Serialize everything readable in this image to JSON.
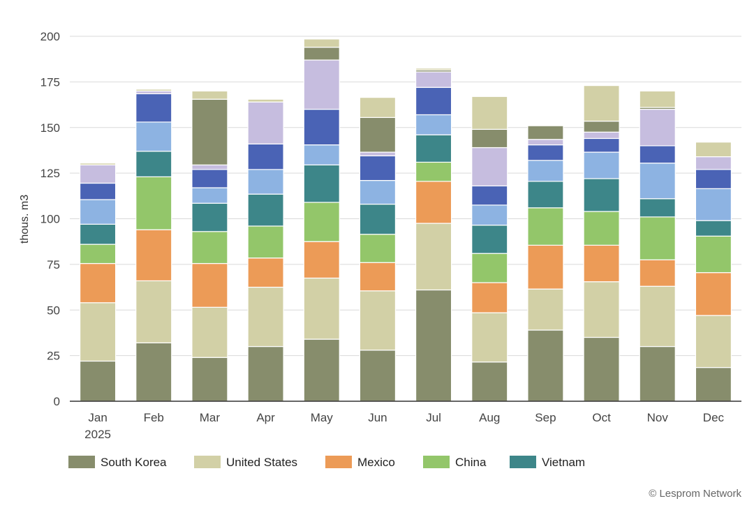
{
  "chart_data": {
    "type": "bar",
    "stacked": true,
    "categories": [
      "Jan",
      "Feb",
      "Mar",
      "Apr",
      "May",
      "Jun",
      "Jul",
      "Aug",
      "Sep",
      "Oct",
      "Nov",
      "Dec"
    ],
    "category_sublabels": [
      "2025",
      "",
      "",
      "",
      "",
      "",
      "",
      "",
      "",
      "",
      "",
      ""
    ],
    "ylabel": "thous. m3",
    "ylim": [
      0,
      200
    ],
    "yticks": [
      0,
      25,
      50,
      75,
      100,
      125,
      150,
      175,
      200
    ],
    "grid": true,
    "legend_position": "bottom",
    "series": [
      {
        "name": "South Korea",
        "color": "#878d6c",
        "in_legend": true,
        "values": [
          22,
          32,
          24,
          30,
          34,
          28,
          61,
          21.5,
          39,
          35,
          30,
          18.5
        ]
      },
      {
        "name": "United States",
        "color": "#d2d0a6",
        "in_legend": true,
        "values": [
          32,
          34,
          27.5,
          32.5,
          33.5,
          32.5,
          36.5,
          27,
          22.5,
          30.5,
          33,
          28.5
        ]
      },
      {
        "name": "Mexico",
        "color": "#ec9b57",
        "in_legend": true,
        "values": [
          21.5,
          28,
          24,
          16,
          20,
          15.5,
          23,
          16.5,
          24,
          20,
          14.5,
          23.5
        ]
      },
      {
        "name": "China",
        "color": "#93c66a",
        "in_legend": true,
        "values": [
          10.5,
          29,
          17.5,
          17.5,
          21.5,
          15.5,
          10.5,
          16,
          20.5,
          18.5,
          23.5,
          20
        ]
      },
      {
        "name": "Vietnam",
        "color": "#3d8689",
        "in_legend": true,
        "values": [
          11,
          14,
          15.5,
          17.5,
          20.5,
          16.5,
          15,
          15.5,
          14.5,
          18,
          10,
          8.5
        ]
      },
      {
        "name": "",
        "color": "#8db3e2",
        "in_legend": false,
        "values": [
          13.5,
          16,
          8.5,
          13.5,
          11,
          13,
          11,
          11,
          11.5,
          14.5,
          19.5,
          17.5
        ]
      },
      {
        "name": "",
        "color": "#4a63b5",
        "in_legend": false,
        "values": [
          9,
          15.5,
          10,
          14,
          19.5,
          13.5,
          15,
          10.5,
          8.5,
          7.5,
          9.5,
          10.5
        ]
      },
      {
        "name": "",
        "color": "#c6bddf",
        "in_legend": false,
        "values": [
          10,
          1.5,
          2.5,
          23,
          27,
          2,
          8.5,
          21,
          3,
          3.5,
          20,
          7
        ]
      },
      {
        "name": "",
        "color": "#878d6c",
        "in_legend": false,
        "values": [
          0,
          0,
          36,
          0,
          7,
          19,
          1,
          10,
          7.5,
          6,
          1,
          0
        ]
      },
      {
        "name": "",
        "color": "#d2d0a6",
        "in_legend": false,
        "values": [
          1,
          1,
          4.5,
          1.5,
          4.5,
          11,
          1,
          18,
          0.5,
          19.5,
          9,
          8
        ]
      }
    ]
  },
  "credit": "© Lesprom Network"
}
